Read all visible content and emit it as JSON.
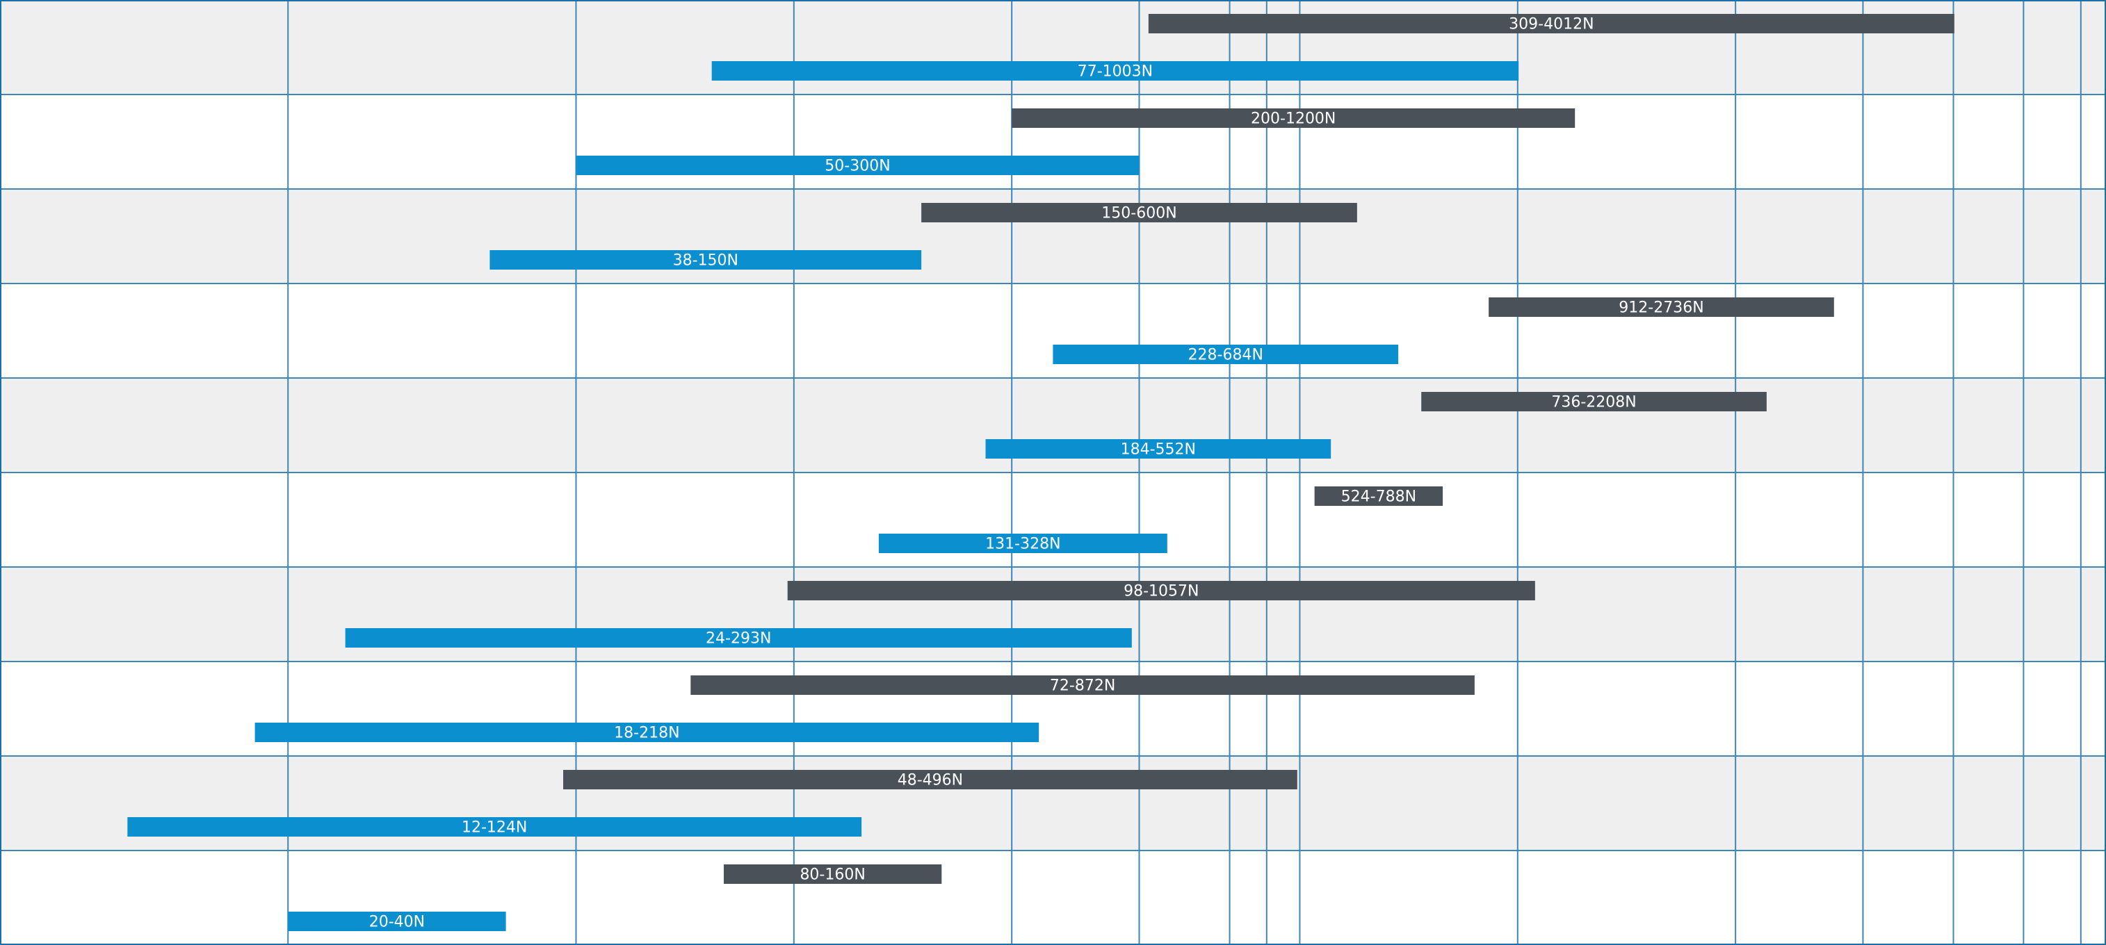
{
  "chart_data": {
    "type": "bar",
    "orientation": "horizontal-range",
    "x_scale": "log",
    "xlim": [
      8,
      6500
    ],
    "grid": true,
    "colors": {
      "dark": "#4b5158",
      "blue": "#0b8fcf",
      "band": "#efefef",
      "grid": "#3d86b5"
    },
    "gridlines": [
      20,
      50,
      100,
      200,
      300,
      400,
      450,
      500,
      1000,
      2000,
      3000,
      4000,
      5000,
      6000,
      8000,
      10000,
      12000
    ],
    "rows": 10,
    "series": [
      {
        "color": "dark",
        "from": 309,
        "to": 4012,
        "label": "309-4012N"
      },
      {
        "color": "blue",
        "from": 77,
        "to": 1003,
        "label": "77-1003N"
      },
      {
        "color": "dark",
        "from": 200,
        "to": 1200,
        "label": "200-1200N"
      },
      {
        "color": "blue",
        "from": 50,
        "to": 300,
        "label": "50-300N"
      },
      {
        "color": "dark",
        "from": 150,
        "to": 600,
        "label": "150-600N"
      },
      {
        "color": "blue",
        "from": 38,
        "to": 150,
        "label": "38-150N"
      },
      {
        "color": "dark",
        "from": 912,
        "to": 2736,
        "label": "912-2736N"
      },
      {
        "color": "blue",
        "from": 228,
        "to": 684,
        "label": "228-684N"
      },
      {
        "color": "dark",
        "from": 736,
        "to": 2208,
        "label": "736-2208N"
      },
      {
        "color": "blue",
        "from": 184,
        "to": 552,
        "label": "184-552N"
      },
      {
        "color": "dark",
        "from": 524,
        "to": 788,
        "label": "524-788N"
      },
      {
        "color": "blue",
        "from": 131,
        "to": 328,
        "label": "131-328N"
      },
      {
        "color": "dark",
        "from": 98,
        "to": 1057,
        "label": "98-1057N"
      },
      {
        "color": "blue",
        "from": 24,
        "to": 293,
        "label": "24-293N"
      },
      {
        "color": "dark",
        "from": 72,
        "to": 872,
        "label": "72-872N"
      },
      {
        "color": "blue",
        "from": 18,
        "to": 218,
        "label": "18-218N"
      },
      {
        "color": "dark",
        "from": 48,
        "to": 496,
        "label": "48-496N"
      },
      {
        "color": "blue",
        "from": 12,
        "to": 124,
        "label": "12-124N"
      },
      {
        "color": "dark",
        "from": 80,
        "to": 160,
        "label": "80-160N"
      },
      {
        "color": "blue",
        "from": 20,
        "to": 40,
        "label": "20-40N"
      }
    ]
  }
}
